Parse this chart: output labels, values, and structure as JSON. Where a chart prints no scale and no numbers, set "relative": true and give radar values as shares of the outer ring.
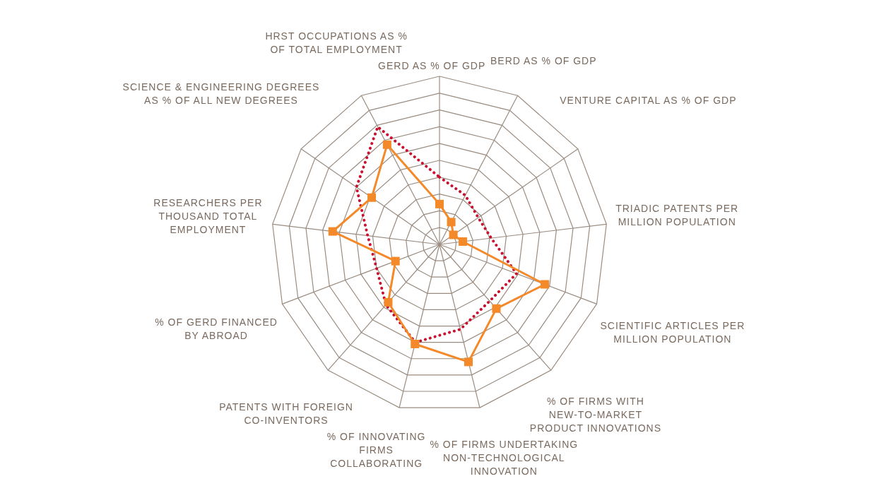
{
  "chart_data": {
    "type": "radar",
    "relative": true,
    "categories": [
      "GERD AS % OF GDP",
      "BERD AS % OF GDP",
      "VENTURE CAPITAL AS % OF GDP",
      "TRIADIC PATENTS PER\nMILLION POPULATION",
      "SCIENTIFIC ARTICLES PER\nMILLION POPULATION",
      "% OF FIRMS WITH\nNEW-TO-MARKET\nPRODUCT INNOVATIONS",
      "% OF FIRMS UNDERTAKING\nNON-TECHNOLOGICAL\nINNOVATION",
      "% OF INNOVATING\nFIRMS\nCOLLABORATING",
      "PATENTS WITH FOREIGN\nCO-INVENTORS",
      "% OF GERD FINANCED\nBY ABROAD",
      "RESEARCHERS PER\nTHOUSAND TOTAL\nEMPLOYMENT",
      "SCIENCE & ENGINEERING DEGREES\nAS % OF ALL NEW DEGREES",
      "HRST OCCUPATIONS AS %\nOF TOTAL EMPLOYMENT"
    ],
    "series": [
      {
        "color": "#c8102e",
        "line_style": "dotted",
        "marker": "none",
        "values": [
          0.4,
          0.33,
          0.28,
          0.31,
          0.49,
          0.45,
          0.52,
          0.6,
          0.48,
          0.4,
          0.43,
          0.6,
          0.79
        ]
      },
      {
        "color": "#f4892a",
        "line_style": "solid",
        "marker": "square",
        "values": [
          0.24,
          0.15,
          0.1,
          0.14,
          0.67,
          0.51,
          0.72,
          0.61,
          0.46,
          0.28,
          0.64,
          0.49,
          0.67
        ]
      }
    ]
  }
}
